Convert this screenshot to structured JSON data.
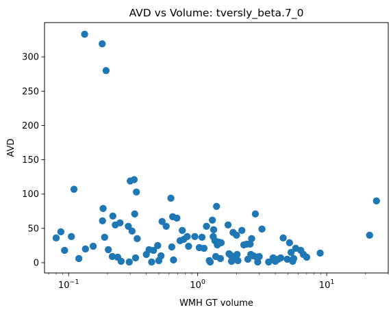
{
  "chart_data": {
    "type": "scatter",
    "title": "AVD vs Volume: tversly_beta.7_0",
    "xlabel": "WMH GT volume",
    "ylabel": "AVD",
    "xscale": "log",
    "xlim": [
      0.065,
      30
    ],
    "ylim": [
      -15,
      350
    ],
    "x_ticks": [
      {
        "value": 0.1,
        "base": "10",
        "exp": "−1"
      },
      {
        "value": 1,
        "label": "10",
        "exp": "0"
      },
      {
        "value": 10,
        "base": "10",
        "exp": "1"
      }
    ],
    "y_ticks": [
      0,
      50,
      100,
      150,
      200,
      250,
      300
    ],
    "grid": false,
    "marker_color": "#1f77b4",
    "points": [
      {
        "x": 0.08,
        "y": 36
      },
      {
        "x": 0.087,
        "y": 45
      },
      {
        "x": 0.093,
        "y": 18
      },
      {
        "x": 0.105,
        "y": 38
      },
      {
        "x": 0.11,
        "y": 107
      },
      {
        "x": 0.12,
        "y": 6
      },
      {
        "x": 0.133,
        "y": 333
      },
      {
        "x": 0.135,
        "y": 20
      },
      {
        "x": 0.155,
        "y": 24
      },
      {
        "x": 0.182,
        "y": 319
      },
      {
        "x": 0.183,
        "y": 61
      },
      {
        "x": 0.185,
        "y": 79
      },
      {
        "x": 0.19,
        "y": 37
      },
      {
        "x": 0.195,
        "y": 280
      },
      {
        "x": 0.203,
        "y": 19
      },
      {
        "x": 0.218,
        "y": 9
      },
      {
        "x": 0.22,
        "y": 68
      },
      {
        "x": 0.23,
        "y": 55
      },
      {
        "x": 0.24,
        "y": 8
      },
      {
        "x": 0.25,
        "y": 58
      },
      {
        "x": 0.255,
        "y": 2
      },
      {
        "x": 0.29,
        "y": 53
      },
      {
        "x": 0.295,
        "y": 1
      },
      {
        "x": 0.3,
        "y": 119
      },
      {
        "x": 0.31,
        "y": 46
      },
      {
        "x": 0.322,
        "y": 121
      },
      {
        "x": 0.325,
        "y": 71
      },
      {
        "x": 0.33,
        "y": 7
      },
      {
        "x": 0.335,
        "y": 103
      },
      {
        "x": 0.34,
        "y": 35
      },
      {
        "x": 0.4,
        "y": 12
      },
      {
        "x": 0.42,
        "y": 19
      },
      {
        "x": 0.44,
        "y": 1
      },
      {
        "x": 0.455,
        "y": 18
      },
      {
        "x": 0.49,
        "y": 25
      },
      {
        "x": 0.5,
        "y": 3
      },
      {
        "x": 0.52,
        "y": 10
      },
      {
        "x": 0.53,
        "y": 60
      },
      {
        "x": 0.57,
        "y": 53
      },
      {
        "x": 0.62,
        "y": 94
      },
      {
        "x": 0.63,
        "y": 23
      },
      {
        "x": 0.64,
        "y": 67
      },
      {
        "x": 0.65,
        "y": 4
      },
      {
        "x": 0.69,
        "y": 65
      },
      {
        "x": 0.73,
        "y": 32
      },
      {
        "x": 0.76,
        "y": 47
      },
      {
        "x": 0.78,
        "y": 34
      },
      {
        "x": 0.83,
        "y": 38
      },
      {
        "x": 0.85,
        "y": 24
      },
      {
        "x": 0.95,
        "y": 38
      },
      {
        "x": 1.03,
        "y": 22
      },
      {
        "x": 1.08,
        "y": 37
      },
      {
        "x": 1.12,
        "y": 21
      },
      {
        "x": 1.17,
        "y": 53
      },
      {
        "x": 1.23,
        "y": 3
      },
      {
        "x": 1.25,
        "y": 1
      },
      {
        "x": 1.3,
        "y": 62
      },
      {
        "x": 1.32,
        "y": 38
      },
      {
        "x": 1.33,
        "y": 48
      },
      {
        "x": 1.36,
        "y": 32
      },
      {
        "x": 1.38,
        "y": 9
      },
      {
        "x": 1.4,
        "y": 82
      },
      {
        "x": 1.42,
        "y": 26
      },
      {
        "x": 1.45,
        "y": 30
      },
      {
        "x": 1.5,
        "y": 6
      },
      {
        "x": 1.52,
        "y": 29
      },
      {
        "x": 1.72,
        "y": 55
      },
      {
        "x": 1.75,
        "y": 13
      },
      {
        "x": 1.8,
        "y": 11
      },
      {
        "x": 1.83,
        "y": 2
      },
      {
        "x": 1.88,
        "y": 44
      },
      {
        "x": 1.95,
        "y": 8
      },
      {
        "x": 2.0,
        "y": 40
      },
      {
        "x": 2.02,
        "y": 12
      },
      {
        "x": 2.05,
        "y": 3
      },
      {
        "x": 2.2,
        "y": 47
      },
      {
        "x": 2.28,
        "y": 26
      },
      {
        "x": 2.4,
        "y": 27
      },
      {
        "x": 2.45,
        "y": 5
      },
      {
        "x": 2.55,
        "y": 27
      },
      {
        "x": 2.58,
        "y": 12
      },
      {
        "x": 2.62,
        "y": 35
      },
      {
        "x": 2.7,
        "y": 10
      },
      {
        "x": 2.8,
        "y": 71
      },
      {
        "x": 2.87,
        "y": 8
      },
      {
        "x": 2.92,
        "y": 1
      },
      {
        "x": 3.0,
        "y": 9
      },
      {
        "x": 3.15,
        "y": 49
      },
      {
        "x": 3.55,
        "y": 1
      },
      {
        "x": 3.85,
        "y": 7
      },
      {
        "x": 4.0,
        "y": 2
      },
      {
        "x": 4.2,
        "y": 5
      },
      {
        "x": 4.4,
        "y": 7
      },
      {
        "x": 4.6,
        "y": 36
      },
      {
        "x": 4.95,
        "y": 5
      },
      {
        "x": 5.15,
        "y": 29
      },
      {
        "x": 5.3,
        "y": 15
      },
      {
        "x": 5.45,
        "y": 2
      },
      {
        "x": 5.55,
        "y": 6
      },
      {
        "x": 5.75,
        "y": 21
      },
      {
        "x": 6.3,
        "y": 18
      },
      {
        "x": 6.6,
        "y": 12
      },
      {
        "x": 7.0,
        "y": 8
      },
      {
        "x": 8.9,
        "y": 14
      },
      {
        "x": 21.5,
        "y": 40
      },
      {
        "x": 24.3,
        "y": 90
      }
    ]
  }
}
